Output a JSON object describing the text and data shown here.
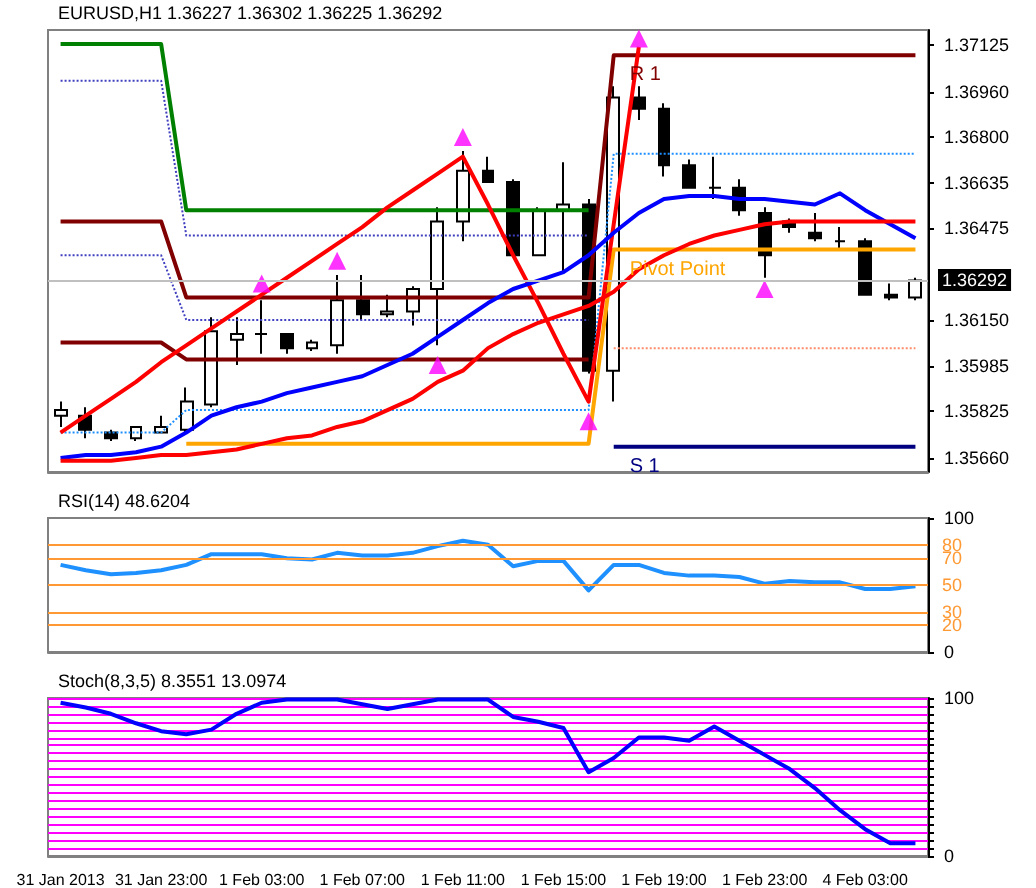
{
  "chart_data": [
    {
      "type": "candlestick",
      "title": "EURUSD,H1 1.36227 1.36302 1.36225 1.36292",
      "color": "#000000",
      "ohlc": [
        [
          1.3581,
          1.3586,
          1.3577,
          1.3583
        ],
        [
          1.3581,
          1.3584,
          1.3573,
          1.3576
        ],
        [
          1.3575,
          1.3576,
          1.3572,
          1.3573
        ],
        [
          1.3573,
          1.3577,
          1.3572,
          1.3577
        ],
        [
          1.3575,
          1.3581,
          1.3575,
          1.3577
        ],
        [
          1.3576,
          1.3591,
          1.3575,
          1.3586
        ],
        [
          1.3585,
          1.3616,
          1.3584,
          1.3611
        ],
        [
          1.3608,
          1.3616,
          1.3599,
          1.361
        ],
        [
          1.361,
          1.3622,
          1.3603,
          1.361
        ],
        [
          1.361,
          1.361,
          1.3603,
          1.3605
        ],
        [
          1.3605,
          1.3608,
          1.3604,
          1.3607
        ],
        [
          1.3606,
          1.3631,
          1.3603,
          1.3622
        ],
        [
          1.3622,
          1.3631,
          1.3615,
          1.3617
        ],
        [
          1.3617,
          1.3624,
          1.3616,
          1.3618
        ],
        [
          1.3618,
          1.3627,
          1.3613,
          1.3626
        ],
        [
          1.3626,
          1.3655,
          1.3606,
          1.365
        ],
        [
          1.365,
          1.3675,
          1.3643,
          1.3668
        ],
        [
          1.3668,
          1.3673,
          1.3664,
          1.3664
        ],
        [
          1.3664,
          1.3665,
          1.3638,
          1.3638
        ],
        [
          1.3638,
          1.3655,
          1.3638,
          1.3654
        ],
        [
          1.3654,
          1.3671,
          1.3632,
          1.3656
        ],
        [
          1.3656,
          1.3658,
          1.3596,
          1.3597
        ],
        [
          1.3597,
          1.3698,
          1.3586,
          1.3694
        ],
        [
          1.3694,
          1.3698,
          1.3686,
          1.369
        ],
        [
          1.369,
          1.3692,
          1.3666,
          1.367
        ],
        [
          1.367,
          1.3672,
          1.3662,
          1.3662
        ],
        [
          1.3662,
          1.3673,
          1.3658,
          1.3662
        ],
        [
          1.3662,
          1.3665,
          1.3652,
          1.3654
        ],
        [
          1.3653,
          1.3655,
          1.363,
          1.3638
        ],
        [
          1.365,
          1.3651,
          1.3646,
          1.3648
        ],
        [
          1.3646,
          1.3653,
          1.3643,
          1.3644
        ],
        [
          1.3643,
          1.3648,
          1.364,
          1.3643
        ],
        [
          1.3643,
          1.3644,
          1.3624,
          1.3624
        ],
        [
          1.3624,
          1.3628,
          1.3622,
          1.3623
        ],
        [
          1.3623,
          1.363,
          1.3622,
          1.3629
        ]
      ],
      "series": [
        {
          "type": "line",
          "color": "#008000",
          "values": [
            1.3713,
            1.3713,
            1.3713,
            1.3713,
            1.3713,
            1.3654,
            1.3654,
            1.3654,
            1.3654,
            1.3654,
            1.3654,
            1.3654,
            1.3654,
            1.3654,
            1.3654,
            1.3654,
            1.3654,
            1.3654,
            1.3654,
            1.3654,
            1.3654,
            1.3654,
            null,
            null,
            null,
            null,
            null,
            null,
            null,
            null,
            null,
            null,
            null,
            null,
            null
          ]
        },
        {
          "type": "line",
          "name": "R 1",
          "color": "#800000",
          "values": [
            1.365,
            1.365,
            1.365,
            1.365,
            1.365,
            1.3623,
            1.3623,
            1.3623,
            1.3623,
            1.3623,
            1.3623,
            1.3623,
            1.3623,
            1.3623,
            1.3623,
            1.3623,
            1.3623,
            1.3623,
            1.3623,
            1.3623,
            1.3623,
            1.3623,
            1.3709,
            1.3709,
            1.3709,
            1.3709,
            1.3709,
            1.3709,
            1.3709,
            1.3709,
            1.3709,
            1.3709,
            1.3709,
            1.3709,
            1.3709
          ]
        },
        {
          "type": "line",
          "color": "#800000",
          "values": [
            1.3607,
            1.3607,
            1.3607,
            1.3607,
            1.3607,
            1.3601,
            1.3601,
            1.3601,
            1.3601,
            1.3601,
            1.3601,
            1.3601,
            1.3601,
            1.3601,
            1.3601,
            1.3601,
            1.3601,
            1.3601,
            1.3601,
            1.3601,
            1.3601,
            1.3601,
            null,
            null,
            null,
            null,
            null,
            null,
            null,
            null,
            null,
            null,
            null,
            null,
            null
          ]
        },
        {
          "type": "line",
          "name": "Pivot Point",
          "color": "#ffa500",
          "values": [
            null,
            null,
            null,
            null,
            null,
            1.3571,
            1.3571,
            1.3571,
            1.3571,
            1.3571,
            1.3571,
            1.3571,
            1.3571,
            1.3571,
            1.3571,
            1.3571,
            1.3571,
            1.3571,
            1.3571,
            1.3571,
            1.3571,
            1.3571,
            1.364,
            1.364,
            1.364,
            1.364,
            1.364,
            1.364,
            1.364,
            1.364,
            1.364,
            1.364,
            1.364,
            1.364,
            1.364
          ]
        },
        {
          "type": "line",
          "name": "S 1",
          "color": "#000080",
          "values": [
            null,
            null,
            null,
            null,
            null,
            null,
            null,
            null,
            null,
            null,
            null,
            null,
            null,
            null,
            null,
            null,
            null,
            null,
            null,
            null,
            null,
            null,
            1.357,
            1.357,
            1.357,
            1.357,
            1.357,
            1.357,
            1.357,
            1.357,
            1.357,
            1.357,
            1.357,
            1.357,
            1.357
          ]
        },
        {
          "type": "line",
          "color": "#4040c0",
          "line_style": "dotted",
          "values": [
            1.37,
            1.37,
            1.37,
            1.37,
            1.37,
            1.3645,
            1.3645,
            1.3645,
            1.3645,
            1.3645,
            1.3645,
            1.3645,
            1.3645,
            1.3645,
            1.3645,
            1.3645,
            1.3645,
            1.3645,
            1.3645,
            1.3645,
            1.3645,
            1.3645,
            null,
            null,
            null,
            null,
            null,
            null,
            null,
            null,
            null,
            null,
            null,
            null,
            null
          ]
        },
        {
          "type": "line",
          "color": "#4040c0",
          "line_style": "dotted",
          "values": [
            1.3638,
            1.3638,
            1.3638,
            1.3638,
            1.3638,
            1.3615,
            1.3615,
            1.3615,
            1.3615,
            1.3615,
            1.3615,
            1.3615,
            1.3615,
            1.3615,
            1.3615,
            1.3615,
            1.3615,
            1.3615,
            1.3615,
            1.3615,
            1.3615,
            1.3615,
            null,
            null,
            null,
            null,
            null,
            null,
            null,
            null,
            null,
            null,
            null,
            null,
            null
          ]
        },
        {
          "type": "line",
          "color": "#1e90ff",
          "line_style": "dotted",
          "values": [
            1.3575,
            1.3575,
            1.3575,
            1.3575,
            1.3575,
            1.3583,
            1.3583,
            1.3583,
            1.3583,
            1.3583,
            1.3583,
            1.3583,
            1.3583,
            1.3583,
            1.3583,
            1.3583,
            1.3583,
            1.3583,
            1.3583,
            1.3583,
            1.3583,
            1.3583,
            1.3674,
            1.3674,
            1.3674,
            1.3674,
            1.3674,
            1.3674,
            1.3674,
            1.3674,
            1.3674,
            1.3674,
            1.3674,
            1.3674,
            1.3674
          ]
        },
        {
          "type": "line",
          "color": "#ff8c69",
          "line_style": "dotted",
          "values": [
            null,
            null,
            null,
            null,
            null,
            null,
            null,
            null,
            null,
            null,
            null,
            null,
            null,
            null,
            null,
            null,
            null,
            null,
            null,
            null,
            null,
            null,
            1.3605,
            1.3605,
            1.3605,
            1.3605,
            1.3605,
            1.3605,
            1.3605,
            1.3605,
            1.3605,
            1.3605,
            1.3605,
            1.3605,
            1.3605
          ]
        },
        {
          "type": "line",
          "color": "#ff0000",
          "values": [
            1.3575,
            1.3581,
            1.3587,
            1.3593,
            1.36,
            1.3606,
            1.3612,
            1.3618,
            1.3624,
            1.363,
            1.3636,
            1.3642,
            1.3648,
            1.3655,
            1.3661,
            1.3667,
            1.3673,
            1.3656,
            1.3638,
            1.3621,
            1.3603,
            1.3586,
            1.3649,
            1.3712,
            null,
            null,
            null,
            null,
            null,
            null,
            null,
            null,
            null,
            null,
            null
          ]
        },
        {
          "type": "line",
          "color": "#0000ff",
          "values": [
            1.3566,
            1.3567,
            1.3567,
            1.3568,
            1.357,
            1.3575,
            1.3581,
            1.3584,
            1.3586,
            1.3589,
            1.3591,
            1.3593,
            1.3595,
            1.3599,
            1.3603,
            1.3609,
            1.3615,
            1.3621,
            1.3626,
            1.3629,
            1.3632,
            1.3638,
            1.3646,
            1.3653,
            1.3658,
            1.3659,
            1.3659,
            1.3658,
            1.3658,
            1.3657,
            1.3656,
            1.366,
            1.3654,
            1.3649,
            1.3644
          ]
        },
        {
          "type": "line",
          "color": "#ff0000",
          "values": [
            1.3565,
            1.3565,
            1.3565,
            1.3566,
            1.3567,
            1.3567,
            1.3568,
            1.3569,
            1.3571,
            1.3573,
            1.3574,
            1.3577,
            1.3579,
            1.3583,
            1.3587,
            1.3593,
            1.3597,
            1.3605,
            1.361,
            1.3614,
            1.3617,
            1.362,
            1.3625,
            1.3633,
            1.3638,
            1.3642,
            1.3645,
            1.3647,
            1.3649,
            1.365,
            1.365,
            1.365,
            1.365,
            1.365,
            1.365
          ]
        },
        {
          "type": "scatter",
          "marker": "triangle",
          "color": "#ff00ff",
          "values": [
            null,
            null,
            null,
            null,
            null,
            null,
            null,
            null,
            1.3628,
            null,
            null,
            1.3636,
            null,
            null,
            null,
            null,
            1.368,
            null,
            null,
            null,
            null,
            null,
            null,
            1.3715,
            null,
            null,
            null,
            null,
            null,
            null,
            null,
            null,
            null,
            null,
            null
          ]
        },
        {
          "type": "scatter",
          "marker": "triangle",
          "color": "#ff00ff",
          "values": [
            null,
            null,
            null,
            null,
            null,
            null,
            null,
            null,
            null,
            null,
            null,
            null,
            null,
            null,
            null,
            1.3599,
            null,
            null,
            null,
            null,
            null,
            1.3579,
            null,
            null,
            null,
            null,
            null,
            null,
            1.3626,
            null,
            null,
            null,
            null,
            null,
            null
          ]
        }
      ],
      "ylim": [
        1.3561,
        1.3718
      ],
      "yticks": [
        {
          "value": 1.3566,
          "label": "1.35660"
        },
        1.35825,
        1.35985,
        {
          "value": 1.3615,
          "label": "1.36150"
        },
        1.36475,
        1.36635,
        {
          "value": 1.368,
          "label": "1.36800"
        },
        {
          "value": 1.3696,
          "label": "1.36960"
        },
        1.37125
      ],
      "ref_lines": [
        {
          "axis": "y",
          "value": 1.36292,
          "label": "1.36292",
          "color": "#c0c0c0"
        }
      ],
      "tick_labels": "y"
    },
    {
      "type": "line",
      "title": "RSI(14) 48.6204",
      "series": [
        {
          "color": "#1e90ff",
          "values": [
            65,
            61,
            58,
            59,
            61,
            65,
            73,
            73,
            73,
            70,
            69,
            74,
            72,
            72,
            74,
            79,
            83,
            80,
            64,
            68,
            68,
            46,
            65,
            65,
            59,
            57,
            57,
            56,
            51,
            53,
            52,
            52,
            47,
            47,
            49
          ]
        }
      ],
      "ylim": [
        0,
        100
      ],
      "yticks": [
        0,
        100
      ],
      "ref_lines": [
        {
          "axis": "y",
          "value": 80,
          "label": "80",
          "color": "#ff9933"
        },
        {
          "axis": "y",
          "value": 70,
          "label": "70",
          "color": "#ff9933"
        },
        {
          "axis": "y",
          "value": 50,
          "label": "50",
          "color": "#ff9933"
        },
        {
          "axis": "y",
          "value": 30,
          "label": "30",
          "color": "#ff9933"
        },
        {
          "axis": "y",
          "value": 20,
          "label": "20",
          "color": "#ff9933"
        }
      ],
      "tick_labels": "y"
    },
    {
      "type": "line",
      "title": "Stoch(8,3,5) 8.3551 13.0974",
      "categories": [
        "31 Jan 2013",
        null,
        null,
        null,
        "31 Jan 23:00",
        null,
        null,
        null,
        "1 Feb 03:00",
        null,
        null,
        null,
        "1 Feb 07:00",
        null,
        null,
        null,
        "1 Feb 11:00",
        null,
        null,
        null,
        "1 Feb 15:00",
        null,
        null,
        null,
        "1 Feb 19:00",
        null,
        null,
        null,
        "1 Feb 23:00",
        null,
        null,
        null,
        "4 Feb 03:00",
        null,
        null
      ],
      "series": [
        {
          "color": "#0000ff",
          "values": [
            97,
            94,
            90,
            84,
            79,
            77,
            80,
            90,
            97,
            99,
            99,
            99,
            96,
            93,
            96,
            99,
            99,
            99,
            88,
            85,
            81,
            53,
            62,
            75,
            75,
            73,
            82,
            73,
            64,
            55,
            43,
            29,
            17,
            8,
            8
          ]
        }
      ],
      "ylim": [
        0,
        100
      ],
      "yticks": [
        0,
        {
          "value": 5,
          "label": null
        },
        {
          "value": 10,
          "label": null
        },
        {
          "value": 15,
          "label": null
        },
        {
          "value": 20,
          "label": null
        },
        {
          "value": 25,
          "label": null
        },
        {
          "value": 30,
          "label": null
        },
        {
          "value": 35,
          "label": null
        },
        {
          "value": 40,
          "label": null
        },
        {
          "value": 45,
          "label": null
        },
        {
          "value": 50,
          "label": null
        },
        {
          "value": 55,
          "label": null
        },
        {
          "value": 60,
          "label": null
        },
        {
          "value": 65,
          "label": null
        },
        {
          "value": 70,
          "label": null
        },
        {
          "value": 75,
          "label": null
        },
        {
          "value": 80,
          "label": null
        },
        {
          "value": 85,
          "label": null
        },
        {
          "value": 90,
          "label": null
        },
        {
          "value": 95,
          "label": null
        },
        100
      ],
      "grid": "y"
    }
  ]
}
